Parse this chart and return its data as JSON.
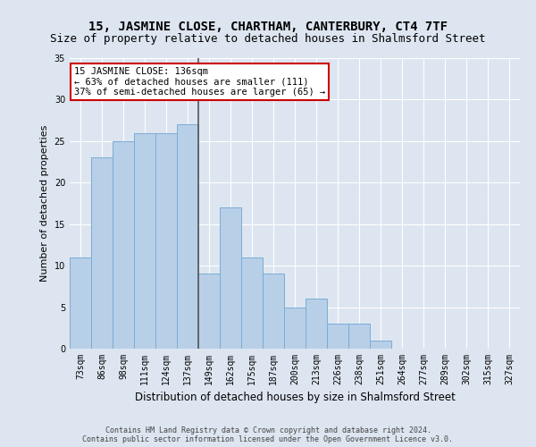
{
  "title": "15, JASMINE CLOSE, CHARTHAM, CANTERBURY, CT4 7TF",
  "subtitle": "Size of property relative to detached houses in Shalmsford Street",
  "xlabel": "Distribution of detached houses by size in Shalmsford Street",
  "ylabel": "Number of detached properties",
  "footnote1": "Contains HM Land Registry data © Crown copyright and database right 2024.",
  "footnote2": "Contains public sector information licensed under the Open Government Licence v3.0.",
  "categories": [
    "73sqm",
    "86sqm",
    "98sqm",
    "111sqm",
    "124sqm",
    "137sqm",
    "149sqm",
    "162sqm",
    "175sqm",
    "187sqm",
    "200sqm",
    "213sqm",
    "226sqm",
    "238sqm",
    "251sqm",
    "264sqm",
    "277sqm",
    "289sqm",
    "302sqm",
    "315sqm",
    "327sqm"
  ],
  "values": [
    11,
    23,
    25,
    26,
    26,
    27,
    9,
    17,
    11,
    9,
    5,
    6,
    3,
    3,
    1,
    0,
    0,
    0,
    0,
    0,
    0
  ],
  "bar_color": "#b8cfe8",
  "bar_edge_color": "#7aadd4",
  "highlight_line_index": 5,
  "highlight_line_color": "#555555",
  "annotation_text": "15 JASMINE CLOSE: 136sqm\n← 63% of detached houses are smaller (111)\n37% of semi-detached houses are larger (65) →",
  "annotation_box_facecolor": "#ffffff",
  "annotation_box_edgecolor": "#cc0000",
  "ylim": [
    0,
    35
  ],
  "yticks": [
    0,
    5,
    10,
    15,
    20,
    25,
    30,
    35
  ],
  "background_color": "#dde5f0",
  "plot_background_color": "#dde5f0",
  "grid_color": "#ffffff",
  "title_fontsize": 10,
  "subtitle_fontsize": 9,
  "xlabel_fontsize": 8.5,
  "ylabel_fontsize": 8,
  "tick_fontsize": 7,
  "annotation_fontsize": 7.5,
  "footnote_fontsize": 6
}
